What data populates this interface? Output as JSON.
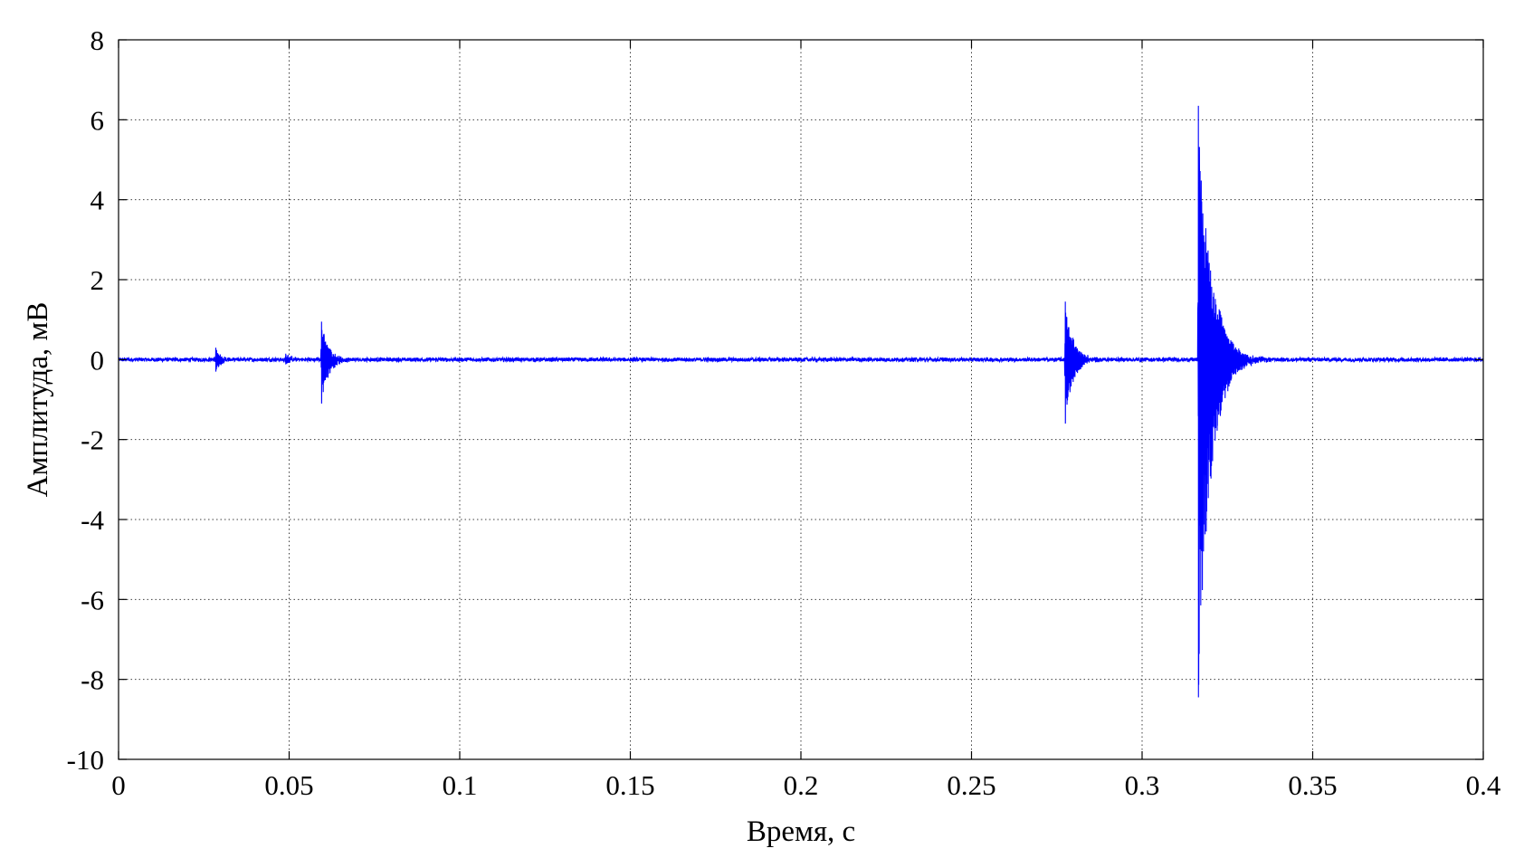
{
  "chart_data": {
    "type": "line",
    "xlabel": "Время, с",
    "ylabel": "Амплитуда, мВ",
    "xlim": [
      0,
      0.4
    ],
    "ylim": [
      -10,
      8
    ],
    "x_ticks": [
      0,
      0.05,
      0.1,
      0.15,
      0.2,
      0.25,
      0.3,
      0.35,
      0.4
    ],
    "x_tick_labels": [
      "0",
      "0.05",
      "0.1",
      "0.15",
      "0.2",
      "0.25",
      "0.3",
      "0.35",
      "0.4"
    ],
    "y_ticks": [
      8,
      6,
      4,
      2,
      0,
      -2,
      -4,
      -6,
      -8,
      -10
    ],
    "y_tick_labels": [
      "8",
      "6",
      "4",
      "2",
      "0",
      "-2",
      "-4",
      "-6",
      "-8",
      "-10"
    ],
    "grid": true,
    "series": [
      {
        "color": "#0000ff",
        "baseline": 0,
        "noise_amplitude": 0.08,
        "bursts": [
          {
            "t": 0.0285,
            "peak": 0.3,
            "trough": -0.3,
            "decay": 0.0012
          },
          {
            "t": 0.049,
            "peak": 0.15,
            "trough": -0.12,
            "decay": 0.0015
          },
          {
            "t": 0.0595,
            "peak": 0.95,
            "trough": -1.1,
            "decay": 0.002
          },
          {
            "t": 0.2775,
            "peak": 1.45,
            "trough": -1.6,
            "decay": 0.0022
          },
          {
            "t": 0.3165,
            "peak": 6.35,
            "trough": -8.45,
            "decay": 0.0035
          },
          {
            "t": 0.322,
            "peak": 0.45,
            "trough": -0.4,
            "decay": 0.002
          }
        ]
      }
    ]
  }
}
